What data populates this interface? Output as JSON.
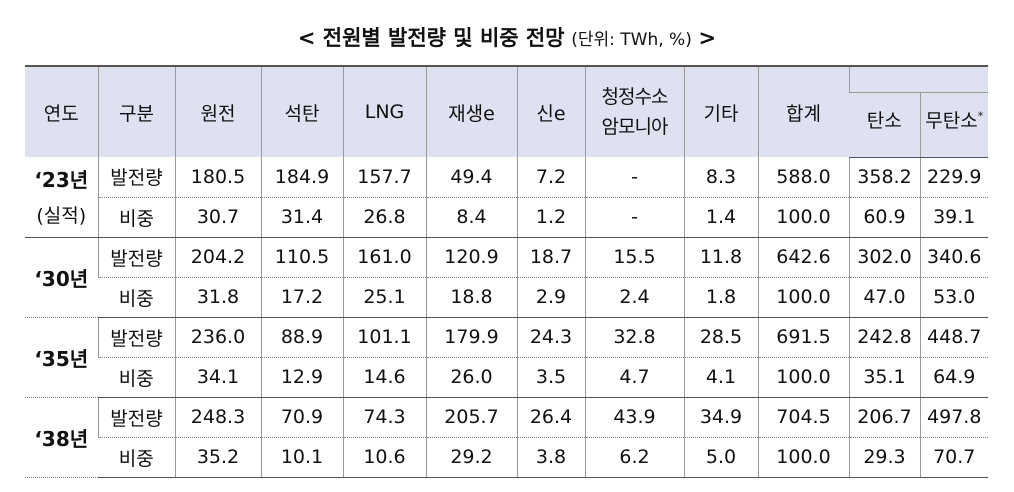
{
  "title": {
    "main": "< 전원별 발전량 및 비중 전망",
    "unit": "(단위: TWh, %)",
    "close": ">"
  },
  "table": {
    "headers": {
      "year": "연도",
      "kind": "구분",
      "nuclear": "원전",
      "coal": "석탄",
      "lng": "LNG",
      "renewable": "재생e",
      "new_energy": "신e",
      "clean_h2_line1": "청정수소",
      "clean_h2_line2": "암모니아",
      "other": "기타",
      "total": "합계",
      "carbon": "탄소",
      "carbon_free": "무탄소",
      "carbon_free_mark": "*"
    },
    "groups": [
      {
        "year": "‘23년",
        "note": "(실적)",
        "rows": [
          {
            "kind": "발전량",
            "values": [
              "180.5",
              "184.9",
              "157.7",
              "49.4",
              "7.2",
              "-",
              "8.3",
              "588.0",
              "358.2",
              "229.9"
            ]
          },
          {
            "kind": "비중",
            "values": [
              "30.7",
              "31.4",
              "26.8",
              "8.4",
              "1.2",
              "-",
              "1.4",
              "100.0",
              "60.9",
              "39.1"
            ]
          }
        ]
      },
      {
        "year": "‘30년",
        "rows": [
          {
            "kind": "발전량",
            "values": [
              "204.2",
              "110.5",
              "161.0",
              "120.9",
              "18.7",
              "15.5",
              "11.8",
              "642.6",
              "302.0",
              "340.6"
            ]
          },
          {
            "kind": "비중",
            "values": [
              "31.8",
              "17.2",
              "25.1",
              "18.8",
              "2.9",
              "2.4",
              "1.8",
              "100.0",
              "47.0",
              "53.0"
            ]
          }
        ]
      },
      {
        "year": "‘35년",
        "rows": [
          {
            "kind": "발전량",
            "values": [
              "236.0",
              "88.9",
              "101.1",
              "179.9",
              "24.3",
              "32.8",
              "28.5",
              "691.5",
              "242.8",
              "448.7"
            ]
          },
          {
            "kind": "비중",
            "values": [
              "34.1",
              "12.9",
              "14.6",
              "26.0",
              "3.5",
              "4.7",
              "4.1",
              "100.0",
              "35.1",
              "64.9"
            ]
          }
        ]
      },
      {
        "year": "‘38년",
        "rows": [
          {
            "kind": "발전량",
            "values": [
              "248.3",
              "70.9",
              "74.3",
              "205.7",
              "26.4",
              "43.9",
              "34.9",
              "704.5",
              "206.7",
              "497.8"
            ]
          },
          {
            "kind": "비중",
            "values": [
              "35.2",
              "10.1",
              "10.6",
              "29.2",
              "3.8",
              "6.2",
              "5.0",
              "100.0",
              "29.3",
              "70.7"
            ]
          }
        ]
      }
    ]
  }
}
